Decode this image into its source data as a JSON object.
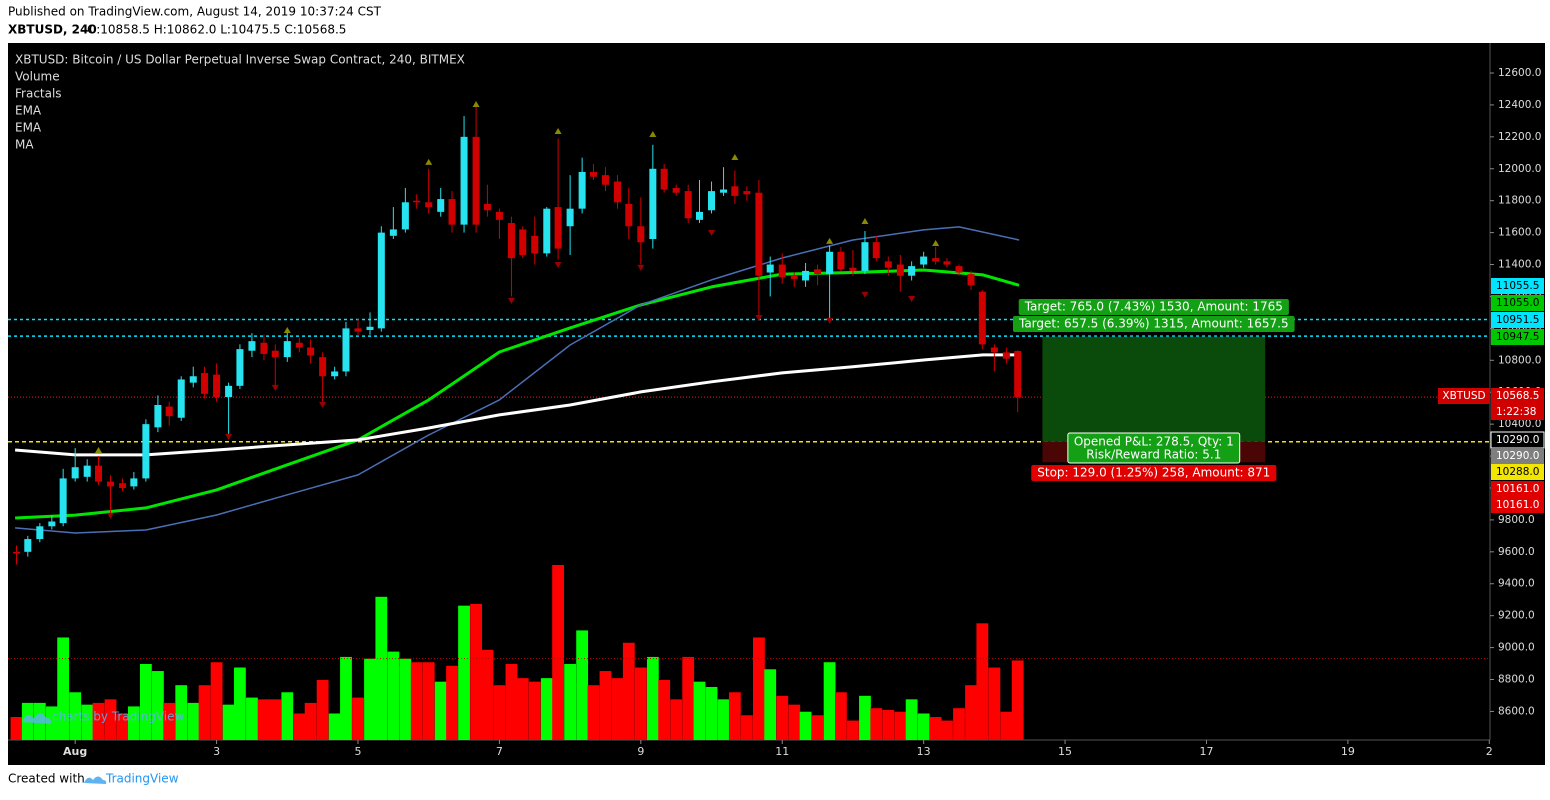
{
  "header": {
    "published": "Published on TradingView.com, August 14, 2019 10:37:24 CST",
    "symbol": "XBTUSD, 240",
    "ohlc": "O:10858.5 H:10862.0 L:10475.5 C:10568.5"
  },
  "footer": {
    "created": "Created with",
    "brand": "TradingView"
  },
  "chart_data": {
    "type": "candlestick",
    "title": "XBTUSD: Bitcoin / US Dollar Perpetual Inverse Swap Contract, 240, BITMEX",
    "indicators": [
      "Volume",
      "Fractals",
      "EMA",
      "EMA",
      "MA"
    ],
    "watermark": "charts by TradingView",
    "up_color": "#26e3ef",
    "down_color": "#d10000",
    "volume_up_color": "#00ff00",
    "volume_down_color": "#ff0000",
    "x": [
      0.17,
      0.33,
      0.5,
      0.67,
      0.83,
      1,
      1.17,
      1.33,
      1.5,
      1.67,
      1.83,
      2,
      2.17,
      2.33,
      2.5,
      2.67,
      2.83,
      3,
      3.17,
      3.33,
      3.5,
      3.67,
      3.83,
      4,
      4.17,
      4.33,
      4.5,
      4.67,
      4.83,
      5,
      5.17,
      5.33,
      5.5,
      5.67,
      5.83,
      6,
      6.17,
      6.33,
      6.5,
      6.67,
      6.83,
      7,
      7.17,
      7.33,
      7.5,
      7.67,
      7.83,
      8,
      8.17,
      8.33,
      8.5,
      8.67,
      8.83,
      9,
      9.17,
      9.33,
      9.5,
      9.67,
      9.83,
      10,
      10.17,
      10.33,
      10.5,
      10.67,
      10.83,
      11,
      11.17,
      11.33,
      11.5,
      11.67,
      11.83,
      12,
      12.17,
      12.33,
      12.5,
      12.67,
      12.83,
      13,
      13.17,
      13.33,
      13.5,
      13.67,
      13.83,
      14,
      14.17,
      14.33
    ],
    "open": [
      9600,
      9600,
      9680,
      9760,
      9780,
      10060,
      10070,
      10140,
      10040,
      10030,
      10010,
      10060,
      10380,
      10510,
      10440,
      10660,
      10720,
      10710,
      10570,
      10640,
      10860,
      10910,
      10860,
      10820,
      10910,
      10880,
      10820,
      10700,
      10730,
      11000,
      10990,
      11000,
      11580,
      11620,
      11800,
      11790,
      11730,
      11810,
      11650,
      12200,
      11780,
      11730,
      11660,
      11620,
      11580,
      11470,
      11760,
      11640,
      11750,
      11980,
      11960,
      11920,
      11780,
      11640,
      11560,
      12000,
      11880,
      11860,
      11680,
      11740,
      11850,
      11890,
      11860,
      11850,
      11350,
      11400,
      11330,
      11300,
      11370,
      11340,
      11480,
      11380,
      11360,
      11540,
      11420,
      11400,
      11330,
      11400,
      11440,
      11420,
      11390,
      11340,
      11230,
      10880,
      10850,
      10858.5
    ],
    "high": [
      9640,
      9700,
      9780,
      9830,
      10120,
      10250,
      10180,
      10200,
      10080,
      10060,
      10100,
      10430,
      10580,
      10540,
      10700,
      10760,
      10760,
      10780,
      10660,
      10900,
      10970,
      10960,
      10900,
      10990,
      10940,
      10930,
      10850,
      10760,
      11040,
      11060,
      11100,
      11640,
      11760,
      11880,
      11840,
      12000,
      11880,
      11860,
      12330,
      12390,
      11900,
      11750,
      11700,
      11640,
      11700,
      11760,
      12190,
      11960,
      12070,
      12030,
      12010,
      11960,
      11880,
      11820,
      12150,
      12030,
      11900,
      11900,
      11930,
      11920,
      12010,
      11990,
      11890,
      11930,
      11450,
      11470,
      11350,
      11410,
      11400,
      11520,
      11510,
      11490,
      11610,
      11580,
      11450,
      11460,
      11420,
      11480,
      11510,
      11440,
      11400,
      11360,
      11240,
      10900,
      10880,
      10862
    ],
    "low": [
      9520,
      9570,
      9660,
      9740,
      9760,
      10040,
      10040,
      10020,
      9830,
      9980,
      9990,
      10040,
      10350,
      10390,
      10420,
      10630,
      10560,
      10540,
      10320,
      10620,
      10820,
      10800,
      10630,
      10790,
      10850,
      10780,
      10520,
      10680,
      10700,
      10950,
      10960,
      10980,
      11560,
      11600,
      11750,
      11720,
      11700,
      11600,
      11600,
      11600,
      11700,
      11560,
      11200,
      11440,
      11400,
      11450,
      11430,
      11460,
      11720,
      11930,
      11860,
      11750,
      11560,
      11400,
      11500,
      11850,
      11830,
      11660,
      11660,
      11720,
      11830,
      11780,
      11800,
      11070,
      11200,
      11280,
      11260,
      11260,
      11270,
      11060,
      11360,
      11330,
      11340,
      11420,
      11330,
      11230,
      11300,
      11380,
      11400,
      11380,
      11330,
      11240,
      10870,
      10730,
      10780,
      10475.5
    ],
    "close": [
      9590,
      9680,
      9760,
      9790,
      10060,
      10130,
      10140,
      10040,
      10010,
      10000,
      10060,
      10400,
      10520,
      10450,
      10680,
      10700,
      10590,
      10570,
      10640,
      10870,
      10920,
      10840,
      10820,
      10920,
      10880,
      10830,
      10700,
      10730,
      11000,
      10980,
      11010,
      11600,
      11620,
      11790,
      11790,
      11760,
      11810,
      11650,
      12200,
      11650,
      11740,
      11680,
      11440,
      11460,
      11470,
      11750,
      11500,
      11750,
      11980,
      11950,
      11900,
      11790,
      11640,
      11540,
      12000,
      11870,
      11850,
      11690,
      11730,
      11860,
      11870,
      11830,
      11840,
      11330,
      11400,
      11320,
      11310,
      11360,
      11340,
      11480,
      11370,
      11360,
      11540,
      11440,
      11380,
      11330,
      11390,
      11450,
      11420,
      11400,
      11350,
      11270,
      10900,
      10850,
      10810,
      10568.5
    ],
    "volume": [
      13,
      21,
      21,
      19,
      58,
      27,
      20,
      21,
      23,
      15,
      19,
      43,
      39,
      21,
      31,
      21,
      31,
      44,
      20,
      41,
      24,
      23,
      23,
      27,
      15,
      21,
      34,
      15,
      47,
      24,
      46,
      81,
      50,
      46,
      44,
      44,
      33,
      42,
      76,
      77,
      51,
      31,
      43,
      35,
      33,
      35,
      99,
      43,
      62,
      31,
      39,
      35,
      55,
      41,
      47,
      34,
      23,
      47,
      33,
      30,
      23,
      27,
      14,
      58,
      40,
      25,
      20,
      16,
      14,
      44,
      27,
      11,
      25,
      18,
      17,
      16,
      23,
      15,
      13,
      11,
      18,
      31,
      66,
      41,
      16,
      45
    ],
    "volume_ma": 46,
    "lines": [
      {
        "name": "EMA",
        "color": "#00e600",
        "width": 3,
        "x": [
          0.15,
          1,
          2,
          3,
          4,
          5,
          6,
          7,
          8,
          9,
          10,
          11,
          12,
          13,
          13.84,
          14.35
        ],
        "values": [
          9812,
          9830,
          9875,
          9988,
          10145,
          10301,
          10552,
          10852,
          11003,
          11147,
          11260,
          11340,
          11350,
          11366,
          11335,
          11270
        ]
      },
      {
        "name": "EMA",
        "color": "#4a6fb5",
        "width": 1.5,
        "x": [
          0.15,
          1,
          2,
          3,
          4,
          5,
          6,
          7,
          8,
          9,
          10,
          11,
          12,
          13,
          13.5,
          14.35
        ],
        "values": [
          9750,
          9718,
          9737,
          9831,
          9957,
          10082,
          10332,
          10552,
          10896,
          11147,
          11304,
          11441,
          11554,
          11617,
          11636,
          11554
        ]
      },
      {
        "name": "MA",
        "color": "#ffffff",
        "width": 3,
        "x": [
          0.15,
          1,
          2,
          3,
          4,
          5,
          6,
          7,
          8,
          9,
          10,
          11,
          12,
          13,
          13.84,
          14.35
        ],
        "values": [
          10238,
          10207,
          10207,
          10238,
          10270,
          10301,
          10376,
          10458,
          10520,
          10602,
          10665,
          10721,
          10759,
          10802,
          10834,
          10834
        ]
      }
    ],
    "fractals": {
      "up_color": "#8a8a00",
      "down_color": "#9a0000",
      "up_x": [
        1.33,
        4,
        6,
        6.67,
        7.83,
        9.17,
        10.33,
        11.67,
        12.17,
        13.17
      ],
      "up_values": [
        10238,
        10990,
        12043,
        12406,
        12237,
        12218,
        12074,
        11548,
        11673,
        11535
      ],
      "down_x": [
        1.5,
        3.17,
        3.83,
        4.5,
        7.17,
        7.83,
        9,
        10,
        10.67,
        11.67,
        12.17,
        12.83
      ],
      "down_values": [
        9825,
        10320,
        10627,
        10520,
        11172,
        11397,
        11379,
        11598,
        11065,
        11047,
        11210,
        11184
      ]
    },
    "hlines": [
      {
        "value": 11055.5,
        "color": "#00e5ff",
        "dash": "3,3"
      },
      {
        "value": 10951.5,
        "color": "#00e5ff",
        "dash": "3,3"
      },
      {
        "value": 10568.5,
        "color": "#c00000",
        "dash": "1,2"
      },
      {
        "value": 10290,
        "color": "#f2e600",
        "dash": "4,3"
      }
    ],
    "position": {
      "x": [
        14.68,
        17.83
      ],
      "entry": 10290,
      "target": 10947.5,
      "stop": 10161,
      "target_labels": [
        "Target: 765.0 (7.43%) 1530, Amount: 1765",
        "Target: 657.5 (6.39%) 1315, Amount: 1657.5"
      ],
      "pnl": "Opened P&L: 278.5, Qty: 1",
      "rr": "Risk/Reward Ratio: 5.1",
      "stop_label": "Stop: 129.0 (1.25%) 258, Amount: 871"
    },
    "price_tags": [
      {
        "text": "11055.5",
        "color": "#00e5ff",
        "text_color": "#000000"
      },
      {
        "text": "11055.0",
        "color": "#00c800",
        "text_color": "#000000"
      },
      {
        "text": "10951.5",
        "color": "#00e5ff",
        "text_color": "#000000"
      },
      {
        "text": "10947.5",
        "color": "#00c800",
        "text_color": "#000000"
      },
      {
        "text": "10568.5",
        "color": "#d10000",
        "text_color": "#ffffff"
      },
      {
        "text": "1:22:38",
        "color": "#d10000",
        "text_color": "#ffffff"
      },
      {
        "text": "10290.0",
        "color": "#000000",
        "text_color": "#ffffff"
      },
      {
        "text": "10290.0",
        "color": "#7f7f7f",
        "text_color": "#ffffff"
      },
      {
        "text": "10288.0",
        "color": "#f2e600",
        "text_color": "#000000"
      },
      {
        "text": "10161.0",
        "color": "#e00000",
        "text_color": "#ffffff"
      },
      {
        "text": "10161.0",
        "color": "#e00000",
        "text_color": "#ffffff"
      }
    ],
    "symbol_tag": "XBTUSD",
    "xlim": [
      0.05,
      21.01
    ],
    "xticks": [
      {
        "value": 1,
        "label": "Aug"
      },
      3,
      5,
      7,
      9,
      11,
      13,
      15,
      17,
      19,
      {
        "value": 21,
        "label": "2"
      }
    ],
    "ylim": [
      8421,
      12788
    ],
    "yticks": [
      {
        "value": 8600,
        "label": "8600.0"
      },
      {
        "value": 8800,
        "label": "8800.0"
      },
      {
        "value": 9000,
        "label": "9000.0"
      },
      {
        "value": 9200,
        "label": "9200.0"
      },
      {
        "value": 9400,
        "label": "9400.0"
      },
      {
        "value": 9600,
        "label": "9600.0"
      },
      {
        "value": 9800,
        "label": "9800.0"
      },
      {
        "value": 10000,
        "label": "10000.0"
      },
      {
        "value": 10200,
        "label": "10200.0"
      },
      {
        "value": 10400,
        "label": "10400.0"
      },
      {
        "value": 10600,
        "label": "10600.0"
      },
      {
        "value": 10800,
        "label": "10800.0"
      },
      {
        "value": 11000,
        "label": "11000.0"
      },
      {
        "value": 11200,
        "label": "11200.0"
      },
      {
        "value": 11400,
        "label": "11400.0"
      },
      {
        "value": 11600,
        "label": "11600.0"
      },
      {
        "value": 11800,
        "label": "11800.0"
      },
      {
        "value": 12000,
        "label": "12000.0"
      },
      {
        "value": 12200,
        "label": "12200.0"
      },
      {
        "value": 12400,
        "label": "12400.0"
      },
      {
        "value": 12600,
        "label": "12600.0"
      }
    ]
  }
}
